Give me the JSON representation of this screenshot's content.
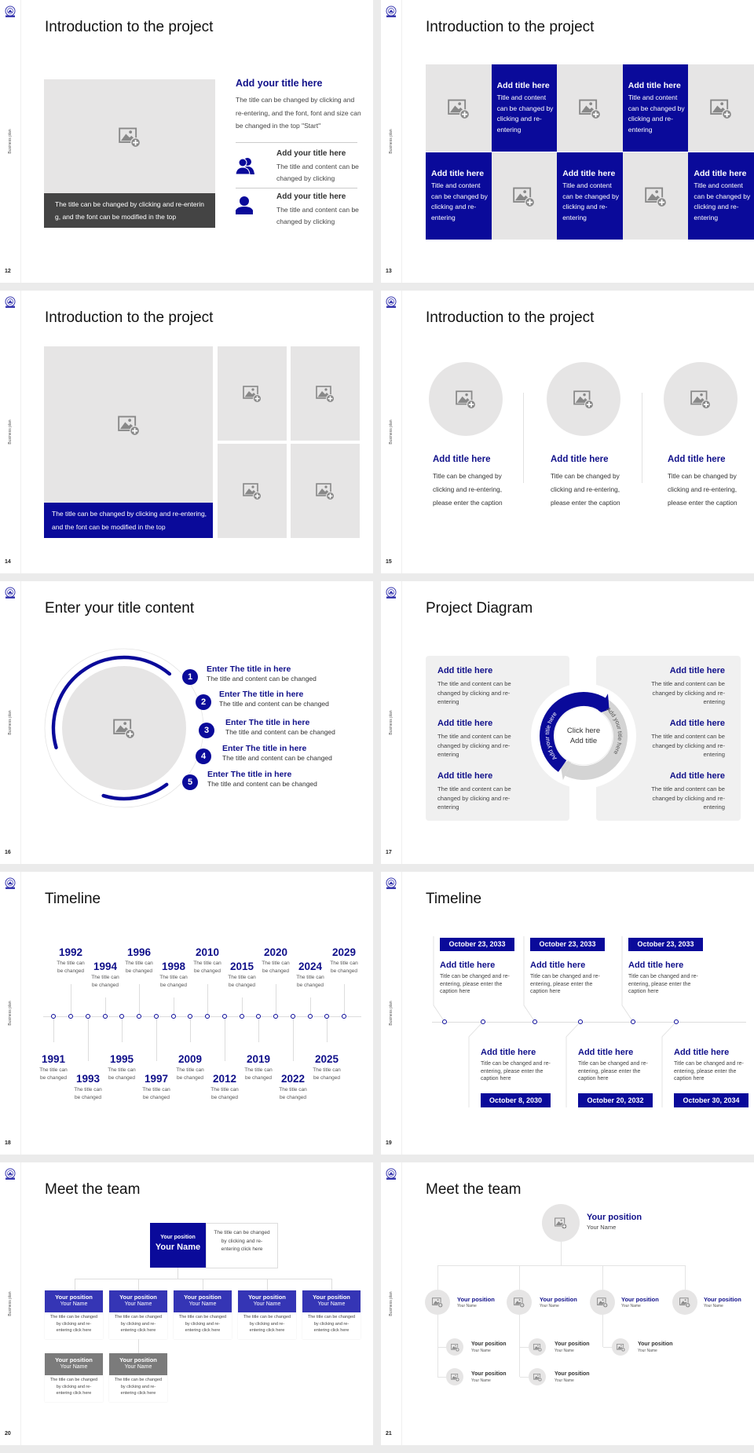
{
  "sidebar_label": "Business plan",
  "colors": {
    "accent": "#0a0a9a",
    "title_text": "#10108a",
    "team_blue": "#3535b5",
    "team_gray": "#7b7b7b",
    "placeholder": "#e6e5e5"
  },
  "slides": [
    {
      "page": "12",
      "title": "Introduction to the project",
      "caption": "The title can be changed by clicking and re-entering, and the font can be modified in the top",
      "heading": "Add your title here",
      "body": "The title can be changed by clicking and re-entering, and the font, font and size can be changed in the top \"Start\"",
      "items": [
        {
          "icon": "users-icon",
          "title": "Add your title here",
          "body": "The title and content can be changed by clicking"
        },
        {
          "icon": "user-icon",
          "title": "Add your title here",
          "body": "The title and content can be changed by clicking"
        }
      ]
    },
    {
      "page": "13",
      "title": "Introduction to the project",
      "cells": [
        {
          "title": "Add title here",
          "body": "Title and content can be changed by clicking and re-entering"
        },
        {
          "title": "Add title here",
          "body": "Title and content can be changed by clicking and re-entering"
        },
        {
          "title": "Add title here",
          "body": "Title and content can be changed by clicking and re-entering"
        },
        {
          "title": "Add title here",
          "body": "Title and content can be changed by clicking and re-entering"
        },
        {
          "title": "Add title here",
          "body": "Title and content can be changed by clicking and re-entering"
        }
      ]
    },
    {
      "page": "14",
      "title": "Introduction to the project",
      "caption": "The title can be changed by clicking and re-entering, and the font can be modified in the top"
    },
    {
      "page": "15",
      "title": "Introduction to the project",
      "cards": [
        {
          "title": "Add title here",
          "body": "Title can be changed by clicking and re-entering, please enter the caption"
        },
        {
          "title": "Add title here",
          "body": "Title can be changed by clicking and re-entering, please enter the caption"
        },
        {
          "title": "Add title here",
          "body": "Title can be changed by clicking and re-entering, please enter the caption"
        }
      ]
    },
    {
      "page": "16",
      "title": "Enter your title content",
      "items": [
        {
          "num": "1",
          "title": "Enter The title in here",
          "body": "The title and content can be changed"
        },
        {
          "num": "2",
          "title": "Enter The title in here",
          "body": "The title and content can be changed"
        },
        {
          "num": "3",
          "title": "Enter The title in here",
          "body": "The title and content can be changed"
        },
        {
          "num": "4",
          "title": "Enter The title in here",
          "body": "The title and content can be changed"
        },
        {
          "num": "5",
          "title": "Enter The title in here",
          "body": "The title and content can be changed"
        }
      ]
    },
    {
      "page": "17",
      "title": "Project Diagram",
      "center": [
        "Click here",
        "Add title"
      ],
      "arrow_labels": [
        "Add your title here",
        "Add your title here"
      ],
      "left": [
        {
          "title": "Add title here",
          "body": "The title and content can be changed by clicking and re-entering"
        },
        {
          "title": "Add title here",
          "body": "The title and content can be changed by clicking and re-entering"
        },
        {
          "title": "Add title here",
          "body": "The title and content can be changed by clicking and re-entering"
        }
      ],
      "right": [
        {
          "title": "Add title here",
          "body": "The title and content can be changed by clicking and re-entering"
        },
        {
          "title": "Add title here",
          "body": "The title and content can be changed by clicking and re-entering"
        },
        {
          "title": "Add title here",
          "body": "The title and content can be changed by clicking and re-entering"
        }
      ]
    },
    {
      "page": "18",
      "title": "Timeline",
      "events": [
        {
          "year": "1991",
          "caption": "The title can be changed"
        },
        {
          "year": "1992",
          "caption": "The title can be changed"
        },
        {
          "year": "1993",
          "caption": "The title can be changed"
        },
        {
          "year": "1994",
          "caption": "The title can be changed"
        },
        {
          "year": "1995",
          "caption": "The title can be changed"
        },
        {
          "year": "1996",
          "caption": "The title can be changed"
        },
        {
          "year": "1997",
          "caption": "The title can be changed"
        },
        {
          "year": "1998",
          "caption": "The title can be changed"
        },
        {
          "year": "2009",
          "caption": "The title can be changed"
        },
        {
          "year": "2010",
          "caption": "The title can be changed"
        },
        {
          "year": "2012",
          "caption": "The title can be changed"
        },
        {
          "year": "2015",
          "caption": "The title can be changed"
        },
        {
          "year": "2019",
          "caption": "The title can be changed"
        },
        {
          "year": "2020",
          "caption": "The title can be changed"
        },
        {
          "year": "2022",
          "caption": "The title can be changed"
        },
        {
          "year": "2024",
          "caption": "The title can be changed"
        },
        {
          "year": "2025",
          "caption": "The title can be changed"
        },
        {
          "year": "2029",
          "caption": "The title can be changed"
        }
      ]
    },
    {
      "page": "19",
      "title": "Timeline",
      "events": [
        {
          "date": "October 23, 2033",
          "title": "Add title here",
          "body": "Title can be changed and re-entering, please enter the caption here"
        },
        {
          "date": "October 8, 2030",
          "title": "Add title here",
          "body": "Title can be changed and re-entering, please enter the caption here"
        },
        {
          "date": "October 23, 2033",
          "title": "Add title here",
          "body": "Title can be changed and re-entering, please enter the caption here"
        },
        {
          "date": "October 20, 2032",
          "title": "Add title here",
          "body": "Title can be changed and re-entering, please enter the caption here"
        },
        {
          "date": "October 23, 2033",
          "title": "Add title here",
          "body": "Title can be changed and re-entering, please enter the caption here"
        },
        {
          "date": "October 30, 2034",
          "title": "Add title here",
          "body": "Title can be changed and re-entering, please enter the caption here"
        }
      ]
    },
    {
      "page": "20",
      "title": "Meet the team",
      "lead": {
        "position": "Your position",
        "name": "Your Name",
        "desc": "The title can be changed by clicking and re-entering click here"
      },
      "members": [
        {
          "position": "Your position",
          "name": "Your Name",
          "desc": "The title can be changed by clicking and re-entering click here"
        },
        {
          "position": "Your position",
          "name": "Your Name",
          "desc": "The title can be changed by clicking and re-entering click here"
        },
        {
          "position": "Your position",
          "name": "Your Name",
          "desc": "The title can be changed by clicking and re-entering click here"
        },
        {
          "position": "Your position",
          "name": "Your Name",
          "desc": "The title can be changed by clicking and re-entering click here"
        },
        {
          "position": "Your position",
          "name": "Your Name",
          "desc": "The title can be changed by clicking and re-entering click here"
        },
        {
          "position": "Your position",
          "name": "Your Name",
          "desc": "The title can be changed by clicking and re-entering click here"
        },
        {
          "position": "Your position",
          "name": "Your Name",
          "desc": "The title can be changed by clicking and re-entering click here"
        }
      ]
    },
    {
      "page": "21",
      "title": "Meet the team",
      "lead": {
        "position": "Your position",
        "name": "Your Name"
      },
      "level2": [
        {
          "position": "Your position",
          "name": "Your Name"
        },
        {
          "position": "Your position",
          "name": "Your Name"
        },
        {
          "position": "Your position",
          "name": "Your Name"
        },
        {
          "position": "Your position",
          "name": "Your Name"
        }
      ],
      "level3": [
        {
          "position": "Your position",
          "name": "Your Name"
        },
        {
          "position": "Your position",
          "name": "Your Name"
        },
        {
          "position": "Your position",
          "name": "Your Name"
        },
        {
          "position": "Your position",
          "name": "Your Name"
        },
        {
          "position": "Your position",
          "name": "Your Name"
        }
      ]
    }
  ]
}
